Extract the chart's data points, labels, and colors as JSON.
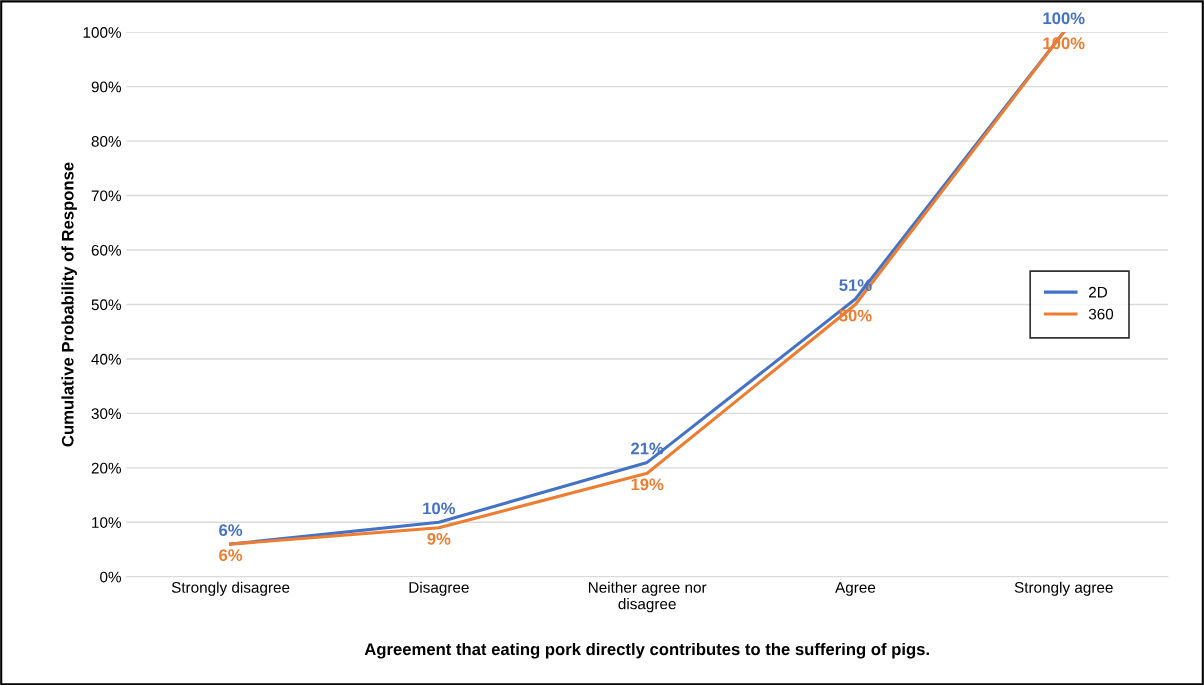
{
  "chart_data": {
    "type": "line",
    "xlabel": "Agreement that eating pork directly contributes to the suffering of pigs.",
    "ylabel": "Cumulative Probability of Response",
    "categories": [
      "Strongly disagree",
      "Disagree",
      "Neither agree nor\ndisagree",
      "Agree",
      "Strongly agree"
    ],
    "series": [
      {
        "name": "2D",
        "color": "#4472c4",
        "values": [
          6,
          10,
          21,
          51,
          100
        ],
        "value_labels": [
          "6%",
          "10%",
          "21%",
          "51%",
          "100%"
        ]
      },
      {
        "name": "360",
        "color": "#ed7d31",
        "values": [
          6,
          9,
          19,
          50,
          100
        ],
        "value_labels": [
          "6%",
          "9%",
          "19%",
          "50%",
          "100%"
        ]
      }
    ],
    "ylim": [
      0,
      100
    ],
    "yticks": [
      {
        "value": 0,
        "label": "0%"
      },
      {
        "value": 10,
        "label": "10%"
      },
      {
        "value": 20,
        "label": "20%"
      },
      {
        "value": 30,
        "label": "30%"
      },
      {
        "value": 40,
        "label": "40%"
      },
      {
        "value": 50,
        "label": "50%"
      },
      {
        "value": 60,
        "label": "60%"
      },
      {
        "value": 70,
        "label": "70%"
      },
      {
        "value": 80,
        "label": "80%"
      },
      {
        "value": 90,
        "label": "90%"
      },
      {
        "value": 100,
        "label": "100%"
      }
    ],
    "grid": "y",
    "legend": "right",
    "marker": "none",
    "line_style": "solid"
  }
}
